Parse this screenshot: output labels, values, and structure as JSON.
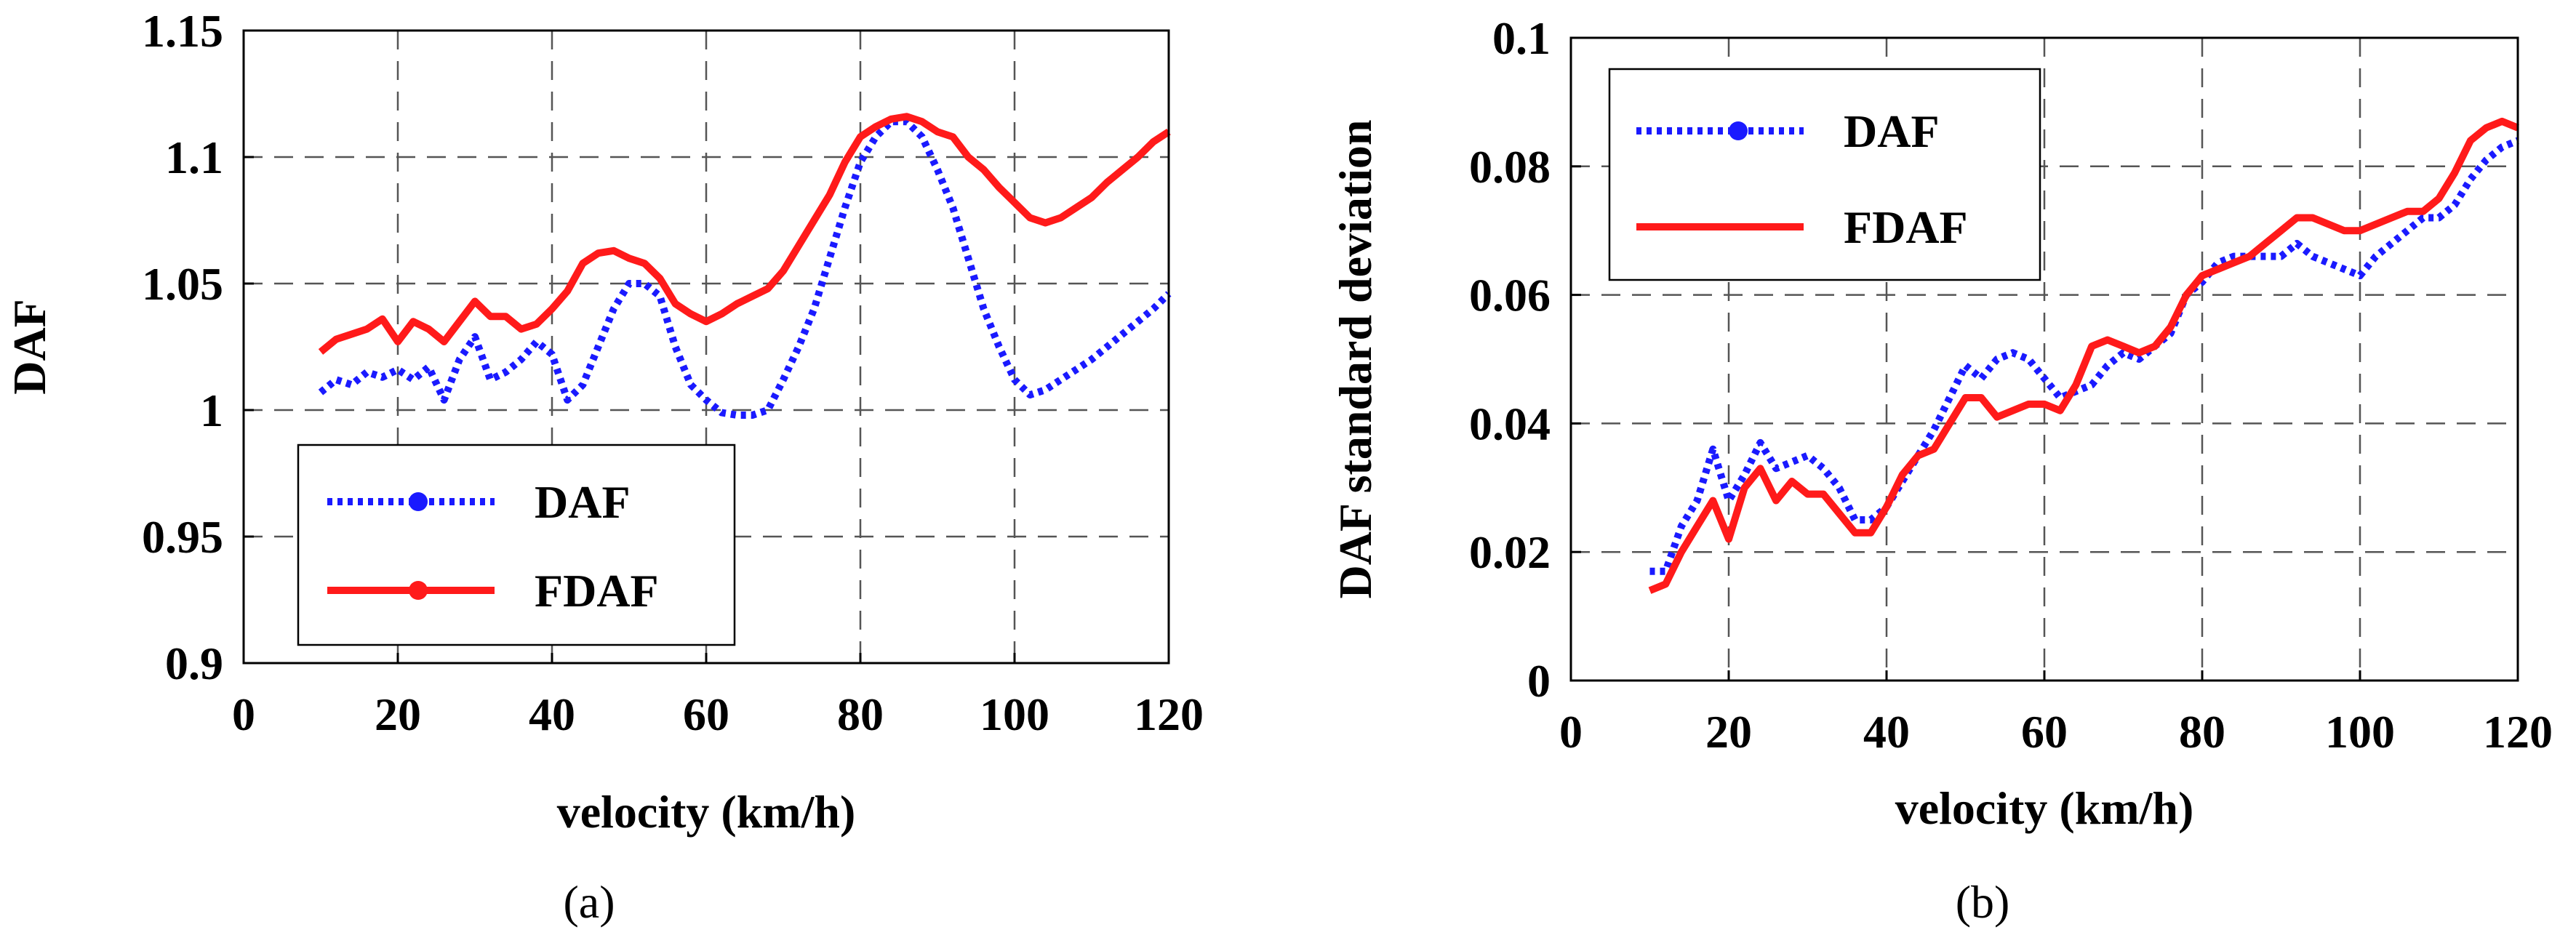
{
  "chart_data": [
    {
      "type": "line",
      "caption": "(a)",
      "xlabel": "velocity (km/h)",
      "ylabel": "DAF",
      "xlim": [
        0,
        120
      ],
      "ylim": [
        0.9,
        1.15
      ],
      "xticks": [
        0,
        20,
        40,
        60,
        80,
        100,
        120
      ],
      "yticks": [
        0.9,
        0.95,
        1,
        1.05,
        1.1,
        1.15
      ],
      "xtick_labels": [
        "0",
        "20",
        "40",
        "60",
        "80",
        "100",
        "120"
      ],
      "ytick_labels": [
        "0.9",
        "0.95",
        "1",
        "1.05",
        "1.1",
        "1.15"
      ],
      "grid": true,
      "legend_position": "lower-left",
      "series": [
        {
          "name": "DAF",
          "color": "#1a1aff",
          "style": "dotted",
          "x": [
            10,
            12,
            14,
            16,
            18,
            20,
            22,
            24,
            26,
            28,
            30,
            32,
            34,
            36,
            38,
            40,
            42,
            44,
            46,
            48,
            50,
            52,
            54,
            56,
            58,
            60,
            62,
            64,
            66,
            68,
            70,
            72,
            74,
            76,
            78,
            80,
            82,
            84,
            86,
            88,
            90,
            92,
            94,
            96,
            98,
            100,
            102,
            104,
            106,
            108,
            110,
            112,
            114,
            116,
            118,
            120
          ],
          "values": [
            1.007,
            1.012,
            1.01,
            1.015,
            1.013,
            1.016,
            1.012,
            1.017,
            1.004,
            1.02,
            1.029,
            1.012,
            1.015,
            1.02,
            1.027,
            1.022,
            1.004,
            1.01,
            1.025,
            1.04,
            1.05,
            1.05,
            1.045,
            1.025,
            1.01,
            1.004,
            0.999,
            0.998,
            0.998,
            1.0,
            1.012,
            1.025,
            1.04,
            1.06,
            1.08,
            1.098,
            1.108,
            1.114,
            1.114,
            1.108,
            1.095,
            1.08,
            1.06,
            1.04,
            1.025,
            1.012,
            1.006,
            1.008,
            1.012,
            1.016,
            1.02,
            1.025,
            1.03,
            1.035,
            1.04,
            1.046
          ]
        },
        {
          "name": "FDAF",
          "color": "#ff1a1a",
          "style": "solid",
          "x": [
            10,
            12,
            14,
            16,
            18,
            20,
            22,
            24,
            26,
            28,
            30,
            32,
            34,
            36,
            38,
            40,
            42,
            44,
            46,
            48,
            50,
            52,
            54,
            56,
            58,
            60,
            62,
            64,
            66,
            68,
            70,
            72,
            74,
            76,
            78,
            80,
            82,
            84,
            86,
            88,
            90,
            92,
            94,
            96,
            98,
            100,
            102,
            104,
            106,
            108,
            110,
            112,
            114,
            116,
            118,
            120
          ],
          "values": [
            1.023,
            1.028,
            1.03,
            1.032,
            1.036,
            1.027,
            1.035,
            1.032,
            1.027,
            1.035,
            1.043,
            1.037,
            1.037,
            1.032,
            1.034,
            1.04,
            1.047,
            1.058,
            1.062,
            1.063,
            1.06,
            1.058,
            1.052,
            1.042,
            1.038,
            1.035,
            1.038,
            1.042,
            1.045,
            1.048,
            1.055,
            1.065,
            1.075,
            1.085,
            1.098,
            1.108,
            1.112,
            1.115,
            1.116,
            1.114,
            1.11,
            1.108,
            1.1,
            1.095,
            1.088,
            1.082,
            1.076,
            1.074,
            1.076,
            1.08,
            1.084,
            1.09,
            1.095,
            1.1,
            1.106,
            1.11
          ]
        }
      ]
    },
    {
      "type": "line",
      "caption": "(b)",
      "xlabel": "velocity (km/h)",
      "ylabel": "DAF standard deviation",
      "xlim": [
        0,
        120
      ],
      "ylim": [
        0,
        0.1
      ],
      "xticks": [
        0,
        20,
        40,
        60,
        80,
        100,
        120
      ],
      "yticks": [
        0,
        0.02,
        0.04,
        0.06,
        0.08,
        0.1
      ],
      "xtick_labels": [
        "0",
        "20",
        "40",
        "60",
        "80",
        "100",
        "120"
      ],
      "ytick_labels": [
        "0",
        "0.02",
        "0.04",
        "0.06",
        "0.08",
        "0.1"
      ],
      "grid": true,
      "legend_position": "upper-left",
      "series": [
        {
          "name": "DAF",
          "color": "#1a1aff",
          "style": "dotted",
          "x": [
            10,
            12,
            14,
            16,
            18,
            20,
            22,
            24,
            26,
            28,
            30,
            32,
            34,
            36,
            38,
            40,
            42,
            44,
            46,
            48,
            50,
            52,
            54,
            56,
            58,
            60,
            62,
            64,
            66,
            68,
            70,
            72,
            74,
            76,
            78,
            80,
            82,
            84,
            86,
            88,
            90,
            92,
            94,
            96,
            98,
            100,
            102,
            104,
            106,
            108,
            110,
            112,
            114,
            116,
            118,
            120
          ],
          "values": [
            0.017,
            0.017,
            0.024,
            0.028,
            0.036,
            0.028,
            0.032,
            0.037,
            0.033,
            0.034,
            0.035,
            0.033,
            0.03,
            0.025,
            0.025,
            0.027,
            0.031,
            0.035,
            0.039,
            0.044,
            0.049,
            0.047,
            0.05,
            0.051,
            0.05,
            0.047,
            0.044,
            0.045,
            0.046,
            0.049,
            0.051,
            0.05,
            0.052,
            0.054,
            0.06,
            0.062,
            0.065,
            0.066,
            0.066,
            0.066,
            0.066,
            0.068,
            0.066,
            0.065,
            0.064,
            0.063,
            0.066,
            0.068,
            0.07,
            0.072,
            0.072,
            0.074,
            0.078,
            0.081,
            0.083,
            0.084
          ]
        },
        {
          "name": "FDAF",
          "color": "#ff1a1a",
          "style": "solid",
          "x": [
            10,
            12,
            14,
            16,
            18,
            20,
            22,
            24,
            26,
            28,
            30,
            32,
            34,
            36,
            38,
            40,
            42,
            44,
            46,
            48,
            50,
            52,
            54,
            56,
            58,
            60,
            62,
            64,
            66,
            68,
            70,
            72,
            74,
            76,
            78,
            80,
            82,
            84,
            86,
            88,
            90,
            92,
            94,
            96,
            98,
            100,
            102,
            104,
            106,
            108,
            110,
            112,
            114,
            116,
            118,
            120
          ],
          "values": [
            0.014,
            0.015,
            0.02,
            0.024,
            0.028,
            0.022,
            0.03,
            0.033,
            0.028,
            0.031,
            0.029,
            0.029,
            0.026,
            0.023,
            0.023,
            0.027,
            0.032,
            0.035,
            0.036,
            0.04,
            0.044,
            0.044,
            0.041,
            0.042,
            0.043,
            0.043,
            0.042,
            0.046,
            0.052,
            0.053,
            0.052,
            0.051,
            0.052,
            0.055,
            0.06,
            0.063,
            0.064,
            0.065,
            0.066,
            0.068,
            0.07,
            0.072,
            0.072,
            0.071,
            0.07,
            0.07,
            0.071,
            0.072,
            0.073,
            0.073,
            0.075,
            0.079,
            0.084,
            0.086,
            0.087,
            0.086
          ]
        }
      ]
    }
  ]
}
